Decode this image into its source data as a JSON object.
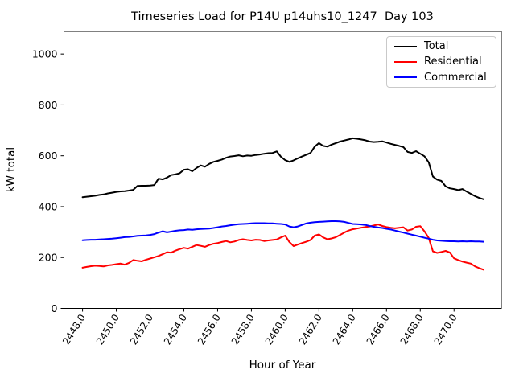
{
  "chart_data": {
    "type": "line",
    "title": "Timeseries Load for P14U p14uhs10_1247  Day 103",
    "xlabel": "Hour of Year",
    "ylabel": "kW total",
    "xlim": [
      2446.9,
      2472.8
    ],
    "ylim": [
      0,
      1089
    ],
    "grid": false,
    "background_color": "#ffffff",
    "x_ticks": {
      "values": [
        2448,
        2450,
        2452,
        2454,
        2456,
        2458,
        2460,
        2462,
        2464,
        2466,
        2468,
        2470
      ],
      "labels": [
        "2448.0",
        "2450.0",
        "2452.0",
        "2454.0",
        "2456.0",
        "2458.0",
        "2460.0",
        "2462.0",
        "2464.0",
        "2466.0",
        "2468.0",
        "2470.0"
      ],
      "rotation_deg": -58
    },
    "y_ticks": {
      "values": [
        0,
        200,
        400,
        600,
        800,
        1000
      ],
      "labels": [
        "0",
        "200",
        "400",
        "600",
        "800",
        "1000"
      ]
    },
    "legend": {
      "position": "upper right"
    },
    "x": [
      2448.0,
      2448.25,
      2448.5,
      2448.75,
      2449.0,
      2449.25,
      2449.5,
      2449.75,
      2450.0,
      2450.25,
      2450.5,
      2450.75,
      2451.0,
      2451.25,
      2451.5,
      2451.75,
      2452.0,
      2452.25,
      2452.5,
      2452.75,
      2453.0,
      2453.25,
      2453.5,
      2453.75,
      2454.0,
      2454.25,
      2454.5,
      2454.75,
      2455.0,
      2455.25,
      2455.5,
      2455.75,
      2456.0,
      2456.25,
      2456.5,
      2456.75,
      2457.0,
      2457.25,
      2457.5,
      2457.75,
      2458.0,
      2458.25,
      2458.5,
      2458.75,
      2459.0,
      2459.25,
      2459.5,
      2459.75,
      2460.0,
      2460.25,
      2460.5,
      2460.75,
      2461.0,
      2461.25,
      2461.5,
      2461.75,
      2462.0,
      2462.25,
      2462.5,
      2462.75,
      2463.0,
      2463.25,
      2463.5,
      2463.75,
      2464.0,
      2464.25,
      2464.5,
      2464.75,
      2465.0,
      2465.25,
      2465.5,
      2465.75,
      2466.0,
      2466.25,
      2466.5,
      2466.75,
      2467.0,
      2467.25,
      2467.5,
      2467.75,
      2468.0,
      2468.25,
      2468.5,
      2468.75,
      2469.0,
      2469.25,
      2469.5,
      2469.75,
      2470.0,
      2470.25,
      2470.5,
      2470.75,
      2471.0,
      2471.25,
      2471.5,
      2471.75
    ],
    "series": [
      {
        "name": "Total",
        "color": "#000000",
        "values": [
          437,
          439,
          441,
          443,
          446,
          448,
          452,
          455,
          458,
          460,
          461,
          463,
          466,
          481,
          482,
          482,
          483,
          485,
          510,
          507,
          514,
          524,
          527,
          531,
          545,
          547,
          539,
          552,
          562,
          557,
          568,
          576,
          580,
          585,
          592,
          597,
          599,
          602,
          598,
          601,
          600,
          603,
          605,
          608,
          610,
          611,
          617,
          596,
          583,
          576,
          582,
          590,
          597,
          604,
          611,
          636,
          650,
          639,
          636,
          644,
          650,
          656,
          660,
          664,
          669,
          667,
          664,
          661,
          656,
          654,
          655,
          657,
          652,
          647,
          643,
          639,
          634,
          615,
          611,
          618,
          608,
          598,
          574,
          518,
          506,
          501,
          480,
          472,
          469,
          465,
          469,
          459,
          450,
          441,
          434,
          429
        ]
      },
      {
        "name": "Residential",
        "color": "#ff0000",
        "values": [
          160,
          163,
          166,
          168,
          167,
          165,
          169,
          171,
          174,
          176,
          172,
          179,
          190,
          187,
          185,
          191,
          196,
          201,
          206,
          213,
          221,
          219,
          227,
          233,
          238,
          235,
          242,
          249,
          246,
          242,
          249,
          254,
          257,
          261,
          265,
          260,
          263,
          269,
          272,
          269,
          267,
          270,
          269,
          265,
          267,
          269,
          271,
          279,
          286,
          261,
          245,
          251,
          257,
          262,
          269,
          286,
          291,
          279,
          272,
          275,
          280,
          289,
          298,
          306,
          311,
          314,
          317,
          320,
          322,
          326,
          330,
          324,
          320,
          317,
          315,
          317,
          319,
          306,
          310,
          321,
          323,
          303,
          277,
          224,
          218,
          222,
          226,
          220,
          197,
          190,
          184,
          180,
          176,
          165,
          158,
          152
        ]
      },
      {
        "name": "Commercial",
        "color": "#0000ff",
        "values": [
          268,
          269,
          270,
          270,
          271,
          272,
          273,
          274,
          276,
          278,
          280,
          281,
          283,
          285,
          286,
          287,
          289,
          292,
          298,
          303,
          299,
          302,
          305,
          307,
          308,
          310,
          309,
          311,
          312,
          313,
          314,
          316,
          319,
          322,
          324,
          327,
          329,
          331,
          332,
          333,
          334,
          335,
          335,
          335,
          334,
          334,
          333,
          332,
          330,
          322,
          319,
          322,
          328,
          334,
          337,
          339,
          340,
          341,
          342,
          343,
          343,
          342,
          340,
          336,
          332,
          331,
          330,
          328,
          324,
          321,
          318,
          316,
          313,
          310,
          306,
          302,
          298,
          294,
          290,
          286,
          282,
          278,
          274,
          270,
          267,
          266,
          265,
          264,
          264,
          263,
          264,
          263,
          264,
          263,
          263,
          262
        ]
      }
    ]
  }
}
